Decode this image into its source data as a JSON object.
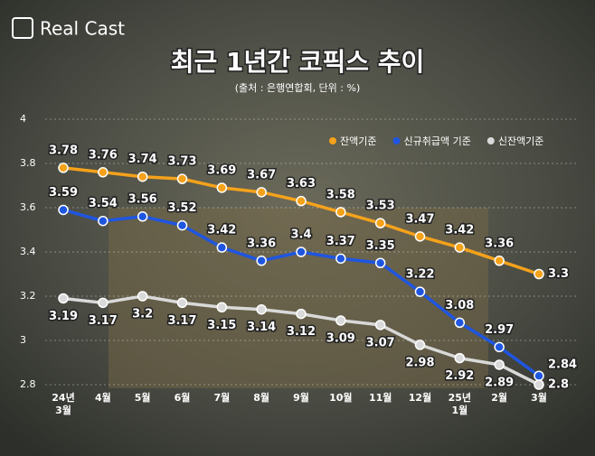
{
  "brand": "Real Cast",
  "chart_data": {
    "type": "line",
    "title": "최근 1년간 코픽스 추이",
    "subtitle": "(출처 : 은행연합회, 단위 : %)",
    "categories": [
      "24년\n3월",
      "4월",
      "5월",
      "6월",
      "7월",
      "8월",
      "9월",
      "10월",
      "11월",
      "12월",
      "25년\n1월",
      "2월",
      "3월"
    ],
    "series": [
      {
        "name": "잔액기준",
        "color": "#f5a21b",
        "values": [
          3.78,
          3.76,
          3.74,
          3.73,
          3.69,
          3.67,
          3.63,
          3.58,
          3.53,
          3.47,
          3.42,
          3.36,
          3.3
        ]
      },
      {
        "name": "신규취급액 기준",
        "color": "#1f56e0",
        "values": [
          3.59,
          3.54,
          3.56,
          3.52,
          3.42,
          3.36,
          3.4,
          3.37,
          3.35,
          3.22,
          3.08,
          2.97,
          2.84
        ]
      },
      {
        "name": "신잔액기준",
        "color": "#d9d9d9",
        "values": [
          3.19,
          3.17,
          3.2,
          3.17,
          3.15,
          3.14,
          3.12,
          3.09,
          3.07,
          2.98,
          2.92,
          2.89,
          2.8
        ]
      }
    ],
    "ylim": [
      2.8,
      4
    ],
    "yticks": [
      2.8,
      3,
      3.2,
      3.4,
      3.6,
      3.8,
      4
    ],
    "grid": true,
    "legend": "top-right"
  }
}
